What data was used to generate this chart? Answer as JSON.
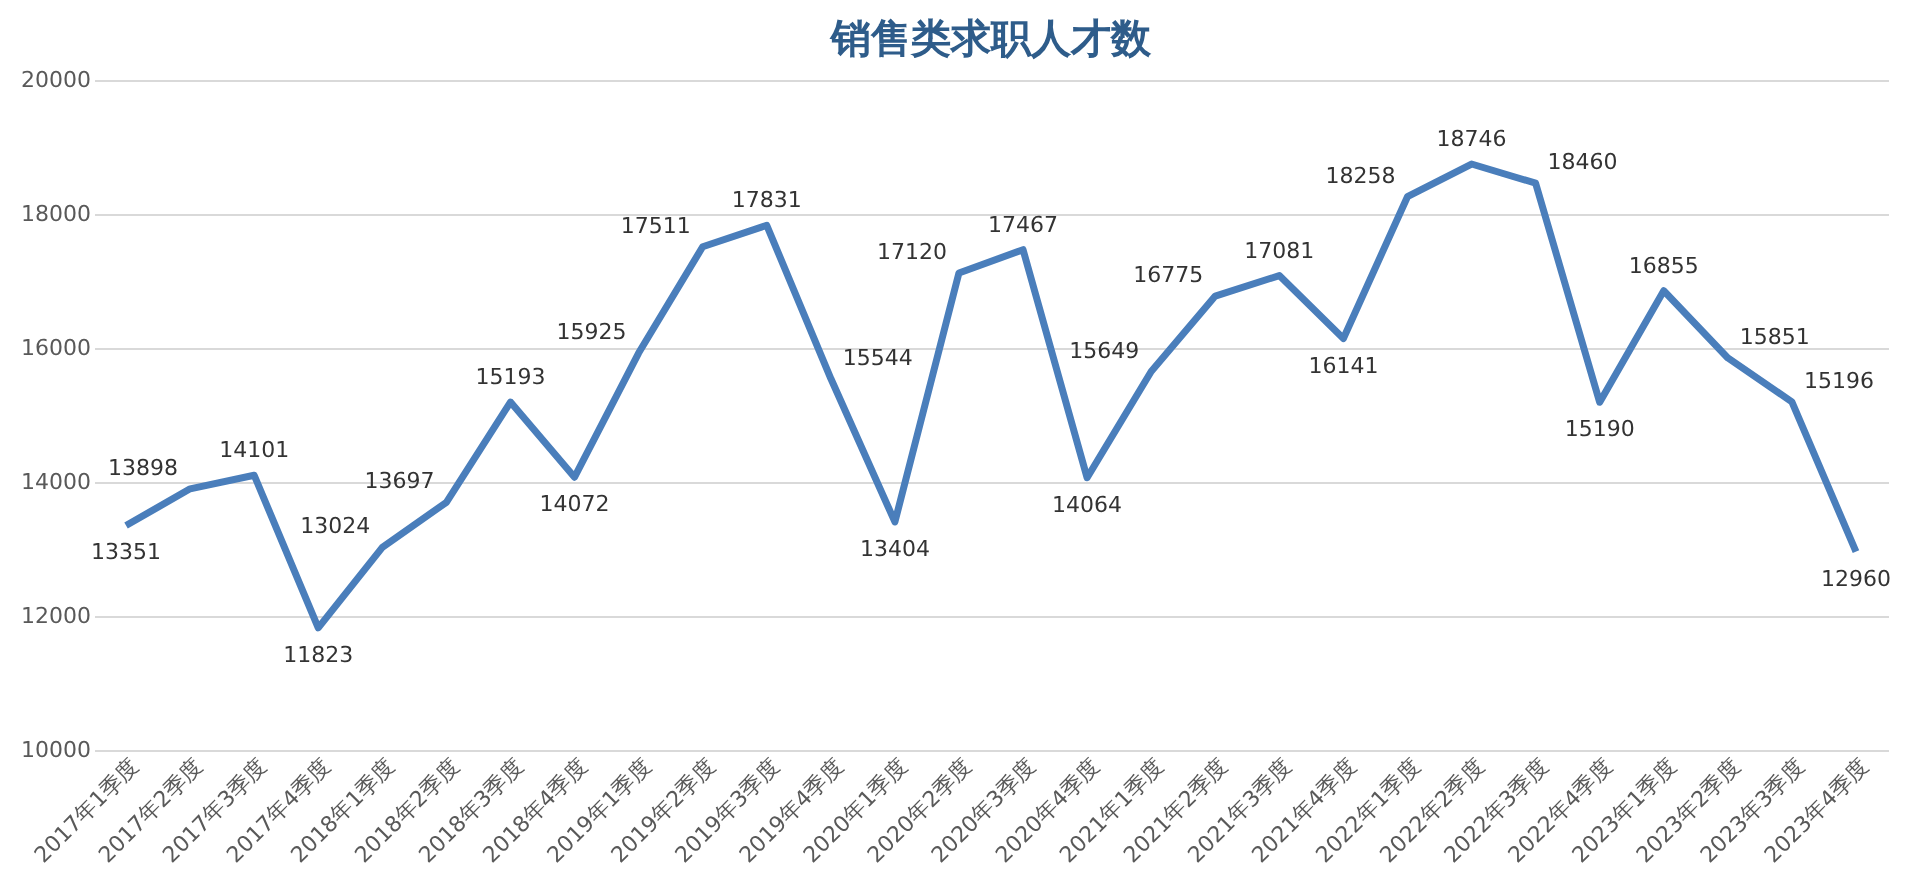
{
  "chart_data": {
    "type": "line",
    "title": "销售类求职人才数",
    "categories": [
      "2017年1季度",
      "2017年2季度",
      "2017年3季度",
      "2017年4季度",
      "2018年1季度",
      "2018年2季度",
      "2018年3季度",
      "2018年4季度",
      "2019年1季度",
      "2019年2季度",
      "2019年3季度",
      "2019年4季度",
      "2020年1季度",
      "2020年2季度",
      "2020年3季度",
      "2020年4季度",
      "2021年1季度",
      "2021年2季度",
      "2021年3季度",
      "2021年4季度",
      "2022年1季度",
      "2022年2季度",
      "2022年3季度",
      "2022年4季度",
      "2023年1季度",
      "2023年2季度",
      "2023年3季度",
      "2023年4季度"
    ],
    "series": [
      {
        "color": "#4a7ebb",
        "values": [
          13351,
          13898,
          14101,
          11823,
          13024,
          13697,
          15193,
          14072,
          15925,
          17511,
          17831,
          15544,
          13404,
          17120,
          17467,
          14064,
          15649,
          16775,
          17081,
          16141,
          18258,
          18746,
          18460,
          15190,
          16855,
          15851,
          15196,
          12960
        ]
      }
    ],
    "ylim": [
      10000,
      20000
    ],
    "yticks": [
      10000,
      12000,
      14000,
      16000,
      18000,
      20000
    ],
    "grid": "y",
    "data_labels": true,
    "marker": "none",
    "line_style": "solid"
  }
}
